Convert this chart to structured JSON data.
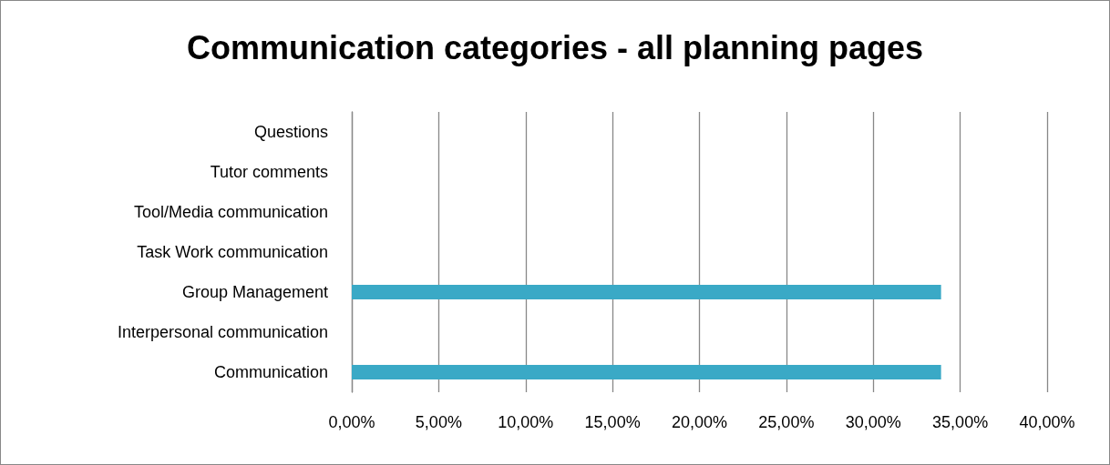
{
  "chart_data": {
    "type": "bar",
    "orientation": "horizontal",
    "title": "Communication categories - all planning pages",
    "categories": [
      "Questions",
      "Tutor comments",
      "Tool/Media communication",
      "Task Work communication",
      "Group Management",
      "Interpersonal communication",
      "Communication"
    ],
    "values": [
      0,
      0,
      0,
      0,
      33.9,
      0,
      33.9
    ],
    "color": "#3aa9c6",
    "xlim": [
      0,
      40
    ],
    "xticks": [
      {
        "value": 0,
        "label": "0,00%"
      },
      {
        "value": 5,
        "label": "5,00%"
      },
      {
        "value": 10,
        "label": "10,00%"
      },
      {
        "value": 15,
        "label": "15,00%"
      },
      {
        "value": 20,
        "label": "20,00%"
      },
      {
        "value": 25,
        "label": "25,00%"
      },
      {
        "value": 30,
        "label": "30,00%"
      },
      {
        "value": 35,
        "label": "35,00%"
      },
      {
        "value": 40,
        "label": "40,00%"
      }
    ],
    "grid": "x"
  }
}
